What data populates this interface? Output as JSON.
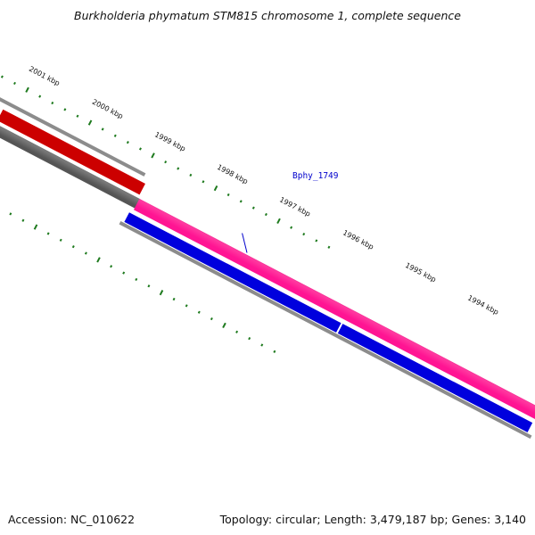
{
  "title": "Burkholderia phymatum STM815 chromosome 1, complete sequence",
  "footer": {
    "accession": "Accession: NC_010622",
    "summary": "Topology: circular; Length: 3,479,187 bp; Genes: 3,140"
  },
  "ruler": {
    "tick_labels": [
      "2001 kbp",
      "2000 kbp",
      "1999 kbp",
      "1998 kbp",
      "1997 kbp",
      "1996 kbp",
      "1995 kbp",
      "1994 kbp"
    ]
  },
  "gene_label": "Bphy_1749",
  "colors": {
    "background": "#ffffff",
    "ticks": "#1e7a1e",
    "backbone": "#8c8c8c",
    "forward_feature": "#ff1493",
    "reverse_feature": "#0000ee",
    "highlight_feature": "#ff0000",
    "other_feature": "#666666",
    "gene_label": "#0000cc"
  }
}
